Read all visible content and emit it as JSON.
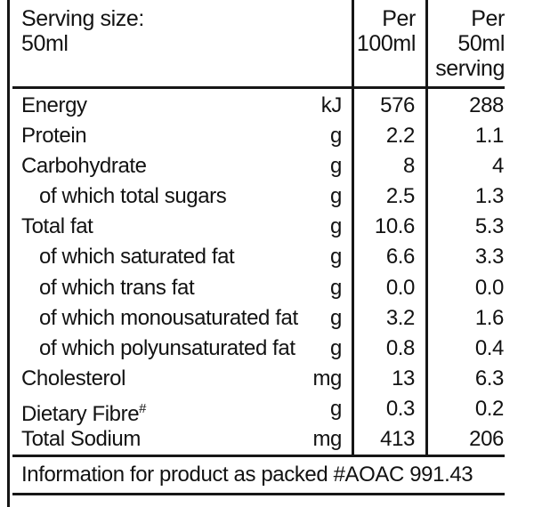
{
  "header": {
    "serving_label": "Serving size:",
    "serving_value": "50ml",
    "col_per100": {
      "line1": "Per",
      "line2": "100ml"
    },
    "col_per50": {
      "line1": "Per",
      "line2": "50ml",
      "line3": "serving"
    }
  },
  "table": {
    "rows": [
      {
        "label": "Energy",
        "indent": false,
        "unit": "kJ",
        "per_100ml": "576",
        "per_50ml": "288"
      },
      {
        "label": "Protein",
        "indent": false,
        "unit": "g",
        "per_100ml": "2.2",
        "per_50ml": "1.1"
      },
      {
        "label": "Carbohydrate",
        "indent": false,
        "unit": "g",
        "per_100ml": "8",
        "per_50ml": "4"
      },
      {
        "label": "of which total sugars",
        "indent": true,
        "unit": "g",
        "per_100ml": "2.5",
        "per_50ml": "1.3"
      },
      {
        "label": "Total fat",
        "indent": false,
        "unit": "g",
        "per_100ml": "10.6",
        "per_50ml": "5.3"
      },
      {
        "label": "of which saturated fat",
        "indent": true,
        "unit": "g",
        "per_100ml": "6.6",
        "per_50ml": "3.3"
      },
      {
        "label": "of which trans fat",
        "indent": true,
        "unit": "g",
        "per_100ml": "0.0",
        "per_50ml": "0.0"
      },
      {
        "label": "of which monousaturated fat",
        "indent": true,
        "unit": "g",
        "per_100ml": "3.2",
        "per_50ml": "1.6"
      },
      {
        "label": "of which polyunsaturated fat",
        "indent": true,
        "unit": "g",
        "per_100ml": "0.8",
        "per_50ml": "0.4"
      },
      {
        "label": "Cholesterol",
        "indent": false,
        "unit": "mg",
        "per_100ml": "13",
        "per_50ml": "6.3"
      },
      {
        "label": "Dietary Fibre",
        "sup": "#",
        "indent": false,
        "unit": "g",
        "per_100ml": "0.3",
        "per_50ml": "0.2"
      },
      {
        "label": "Total Sodium",
        "indent": false,
        "unit": "mg",
        "per_100ml": "413",
        "per_50ml": "206"
      }
    ]
  },
  "footer": {
    "note": "Information for product as packed #AOAC 991.43"
  },
  "colors": {
    "text": "#121212",
    "line": "#161616",
    "background": "#ffffff"
  }
}
